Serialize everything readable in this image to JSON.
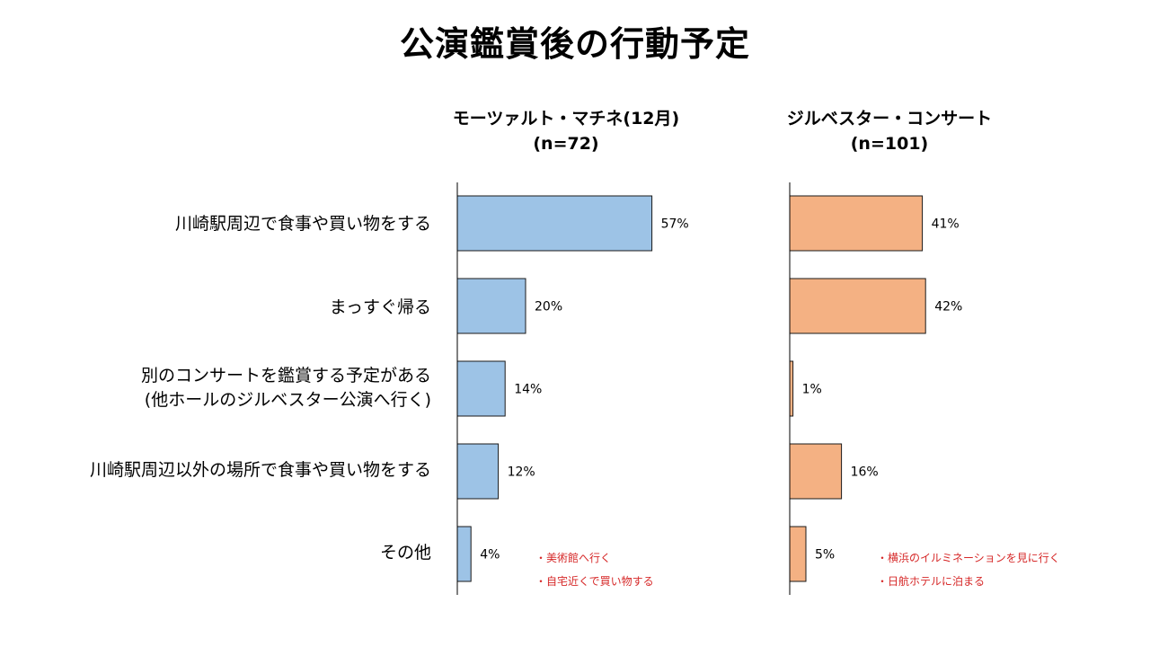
{
  "title": "公演鑑賞後の行動予定",
  "categories": [
    "川崎駅周辺で食事や買い物をする",
    "まっすぐ帰る",
    "別のコンサートを鑑賞する予定がある\n(他ホールのジルベスター公演へ行く)",
    "川崎駅周辺以外の場所で食事や買い物をする",
    "その他"
  ],
  "chart_data": [
    {
      "type": "bar",
      "title": "モーツァルト・マチネ(12月)",
      "subtitle": "(n=72)",
      "categories": [
        "川崎駅周辺で食事や買い物をする",
        "まっすぐ帰る",
        "別のコンサートを鑑賞する予定がある(他ホールのジルベスター公演へ行く)",
        "川崎駅周辺以外の場所で食事や買い物をする",
        "その他"
      ],
      "values": [
        57,
        20,
        14,
        12,
        4
      ],
      "data_labels": [
        "57%",
        "20%",
        "14%",
        "12%",
        "4%"
      ],
      "color": "#9dc3e6",
      "notes": [
        "・美術館へ行く",
        "・自宅近くで買い物する"
      ]
    },
    {
      "type": "bar",
      "title": "ジルベスター・コンサート",
      "subtitle": "(n=101)",
      "categories": [
        "川崎駅周辺で食事や買い物をする",
        "まっすぐ帰る",
        "別のコンサートを鑑賞する予定がある(他ホールのジルベスター公演へ行く)",
        "川崎駅周辺以外の場所で食事や買い物をする",
        "その他"
      ],
      "values": [
        41,
        42,
        1,
        16,
        5
      ],
      "data_labels": [
        "41%",
        "42%",
        "1%",
        "16%",
        "5%"
      ],
      "color": "#f4b183",
      "notes": [
        "・横浜のイルミネーションを見に行く",
        "・日航ホテルに泊まる"
      ]
    }
  ]
}
